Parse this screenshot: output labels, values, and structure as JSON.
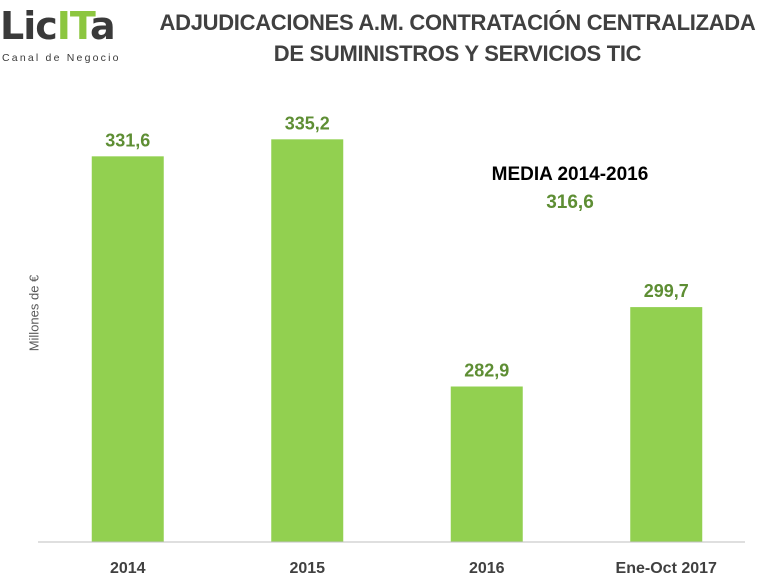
{
  "logo": {
    "word_part1": "Lic",
    "word_part2": "IT",
    "word_part3": "a",
    "tagline": "Canal de Negocio"
  },
  "title": {
    "line1": "ADJUDICACIONES A.M. CONTRATACIÓN CENTRALIZADA",
    "line2": "DE SUMINISTROS Y SERVICIOS TIC"
  },
  "average": {
    "label": "MEDIA 2014-2016",
    "value": "316,6"
  },
  "colors": {
    "bar": "#92d050",
    "value_label": "#5e8e34",
    "axis": "#bfbfbf",
    "tick_text": "#404040"
  },
  "chart_data": {
    "type": "bar",
    "title": "ADJUDICACIONES A.M. CONTRATACIÓN CENTRALIZADA DE SUMINISTROS Y SERVICIOS TIC",
    "xlabel": "",
    "ylabel": "Millones de €",
    "categories": [
      "2014",
      "2015",
      "2016",
      "Ene-Oct 2017"
    ],
    "values": [
      331.6,
      335.2,
      282.9,
      299.7
    ],
    "value_labels": [
      "331,6",
      "335,2",
      "282,9",
      "299,7"
    ],
    "ylim": [
      250,
      345
    ],
    "grid": false,
    "annotations": [
      {
        "text": "MEDIA 2014-2016",
        "value": "316,6"
      }
    ]
  }
}
